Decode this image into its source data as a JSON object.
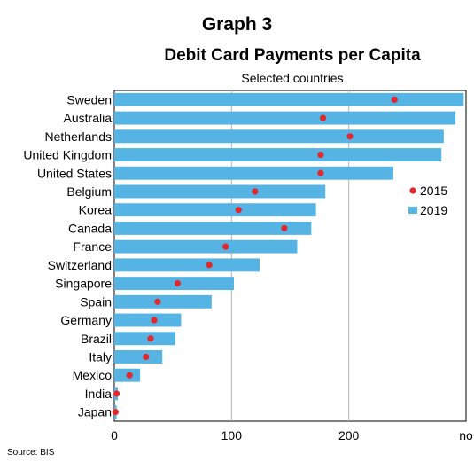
{
  "header": {
    "graph_label": "Graph 3",
    "title": "Debit Card Payments per Capita",
    "subtitle": "Selected countries",
    "source": "Source:   BIS"
  },
  "chart_data": {
    "type": "bar",
    "orientation": "horizontal",
    "categories": [
      "Sweden",
      "Australia",
      "Netherlands",
      "United Kingdom",
      "United States",
      "Belgium",
      "Korea",
      "Canada",
      "France",
      "Switzerland",
      "Singapore",
      "Spain",
      "Germany",
      "Brazil",
      "Italy",
      "Mexico",
      "India",
      "Japan"
    ],
    "series": [
      {
        "name": "2019",
        "mark": "bar",
        "color": "#56b4e4",
        "values": [
          298,
          291,
          281,
          279,
          238,
          180,
          172,
          168,
          156,
          124,
          102,
          83,
          57,
          52,
          41,
          22,
          3,
          2
        ]
      },
      {
        "name": "2015",
        "mark": "dot",
        "color": "#e0282d",
        "values": [
          239,
          178,
          201,
          176,
          176,
          120,
          106,
          145,
          95,
          81,
          54,
          37,
          34,
          31,
          27,
          13,
          2,
          1
        ]
      }
    ],
    "x_ticks": [
      "0",
      "100",
      "200",
      "no"
    ],
    "x_tick_values": [
      0,
      100,
      200,
      300
    ],
    "xlim": [
      0,
      300
    ],
    "grid": "vertical",
    "legend": {
      "placement": "right",
      "entries": [
        "2015",
        "2019"
      ]
    },
    "xlabel": "",
    "ylabel": ""
  }
}
